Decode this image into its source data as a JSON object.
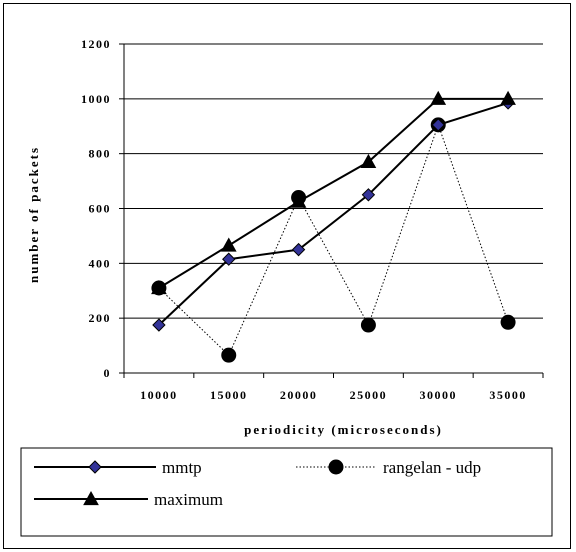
{
  "chart_data": {
    "type": "line",
    "title": "",
    "xlabel": "periodicity (microseconds)",
    "ylabel": "number of packets",
    "categories": [
      "10000",
      "15000",
      "20000",
      "25000",
      "30000",
      "35000"
    ],
    "x": [
      10000,
      15000,
      20000,
      25000,
      30000,
      35000
    ],
    "ylim": [
      0,
      1200
    ],
    "yticks": [
      0,
      200,
      400,
      600,
      800,
      1000,
      1200
    ],
    "grid": "horizontal",
    "legend_position": "bottom",
    "series": [
      {
        "name": "mmtp",
        "values": [
          175,
          415,
          450,
          650,
          905,
          985
        ],
        "marker": "diamond",
        "line": "solid",
        "color": "#000000",
        "marker_color": "#333399"
      },
      {
        "name": "rangelan - udp",
        "values": [
          310,
          65,
          640,
          175,
          905,
          185
        ],
        "marker": "circle",
        "line": "dotted",
        "color": "#000000",
        "marker_color": "#000000"
      },
      {
        "name": "maximum",
        "values": [
          310,
          465,
          625,
          770,
          1000,
          1000
        ],
        "marker": "triangle",
        "line": "solid",
        "color": "#000000",
        "marker_color": "#000000"
      }
    ]
  }
}
